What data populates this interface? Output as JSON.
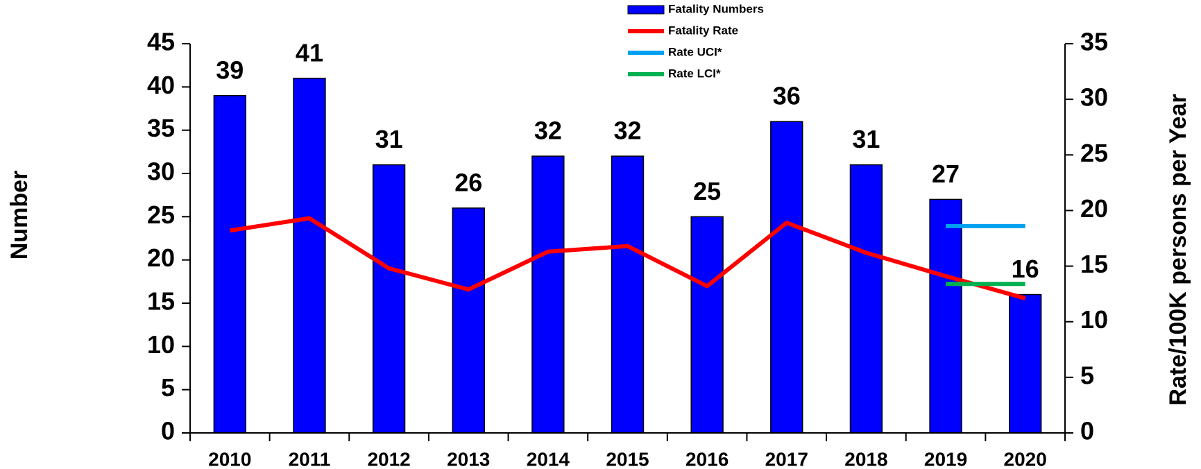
{
  "chart_data": {
    "type": "bar",
    "categories": [
      "2010",
      "2011",
      "2012",
      "2013",
      "2014",
      "2015",
      "2016",
      "2017",
      "2018",
      "2019",
      "2020"
    ],
    "series": [
      {
        "name": "Fatality Numbers",
        "color": "#0000ff",
        "values": [
          39,
          41,
          31,
          26,
          32,
          32,
          25,
          36,
          31,
          27,
          16
        ]
      },
      {
        "name": "Fatality Rate",
        "color": "#ff0000",
        "axis": "y2",
        "values": [
          18.2,
          19.3,
          14.8,
          12.9,
          16.3,
          16.8,
          13.2,
          18.9,
          16.2,
          14.1,
          12.1
        ]
      },
      {
        "name": "Rate UCI*",
        "color": "#00a0f0",
        "axis": "y2",
        "values": [
          null,
          null,
          null,
          null,
          null,
          null,
          null,
          null,
          null,
          18.6,
          18.6
        ]
      },
      {
        "name": "Rate LCI*",
        "color": "#00b050",
        "axis": "y2",
        "values": [
          null,
          null,
          null,
          null,
          null,
          null,
          null,
          null,
          null,
          13.4,
          13.4
        ]
      }
    ],
    "ylabel": "Number",
    "y2label": "Rate/100K persons per Year",
    "ylim": [
      0,
      45
    ],
    "yticks": [
      0,
      5,
      10,
      15,
      20,
      25,
      30,
      35,
      40,
      45
    ],
    "y2lim": [
      0,
      35
    ],
    "y2ticks": [
      0,
      5,
      10,
      15,
      20,
      25,
      30,
      35
    ]
  }
}
